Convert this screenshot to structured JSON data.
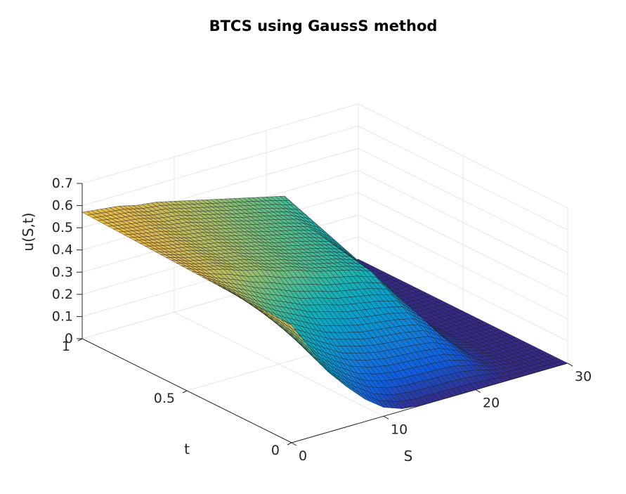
{
  "chart_data": {
    "type": "surface",
    "title": "BTCS using GaussS method",
    "xlabel": "S",
    "ylabel": "t",
    "zlabel": "u(S,t)",
    "x_range": [
      0,
      30
    ],
    "y_range": [
      0,
      1
    ],
    "z_range": [
      0,
      0.7
    ],
    "x_ticks": [
      "0",
      "10",
      "20",
      "30"
    ],
    "y_ticks": [
      "0",
      "0.5",
      "1"
    ],
    "z_ticks": [
      "0",
      "0.1",
      "0.2",
      "0.3",
      "0.4",
      "0.5",
      "0.6",
      "0.7"
    ],
    "grid": true,
    "colormap": "parula",
    "surface_samples": {
      "S": [
        0,
        2,
        4,
        6,
        8,
        10,
        12,
        14,
        16,
        18,
        20,
        22,
        24,
        26,
        28,
        30
      ],
      "t": [
        0,
        0.5,
        1
      ],
      "u": [
        [
          0.53,
          0.4,
          0.27,
          0.18,
          0.1,
          0.04,
          0.01,
          0.0,
          0.0,
          0.0,
          0.0,
          0.0,
          0.0,
          0.0,
          0.0,
          0.0
        ],
        [
          0.55,
          0.52,
          0.5,
          0.47,
          0.45,
          0.42,
          0.4,
          0.37,
          0.35,
          0.33,
          0.3,
          0.2,
          0.05,
          0.0,
          0.0,
          0.0
        ],
        [
          0.57,
          0.56,
          0.55,
          0.53,
          0.52,
          0.5,
          0.48,
          0.46,
          0.44,
          0.42,
          0.4,
          0.38,
          0.2,
          0.02,
          0.0,
          0.0
        ]
      ]
    }
  }
}
